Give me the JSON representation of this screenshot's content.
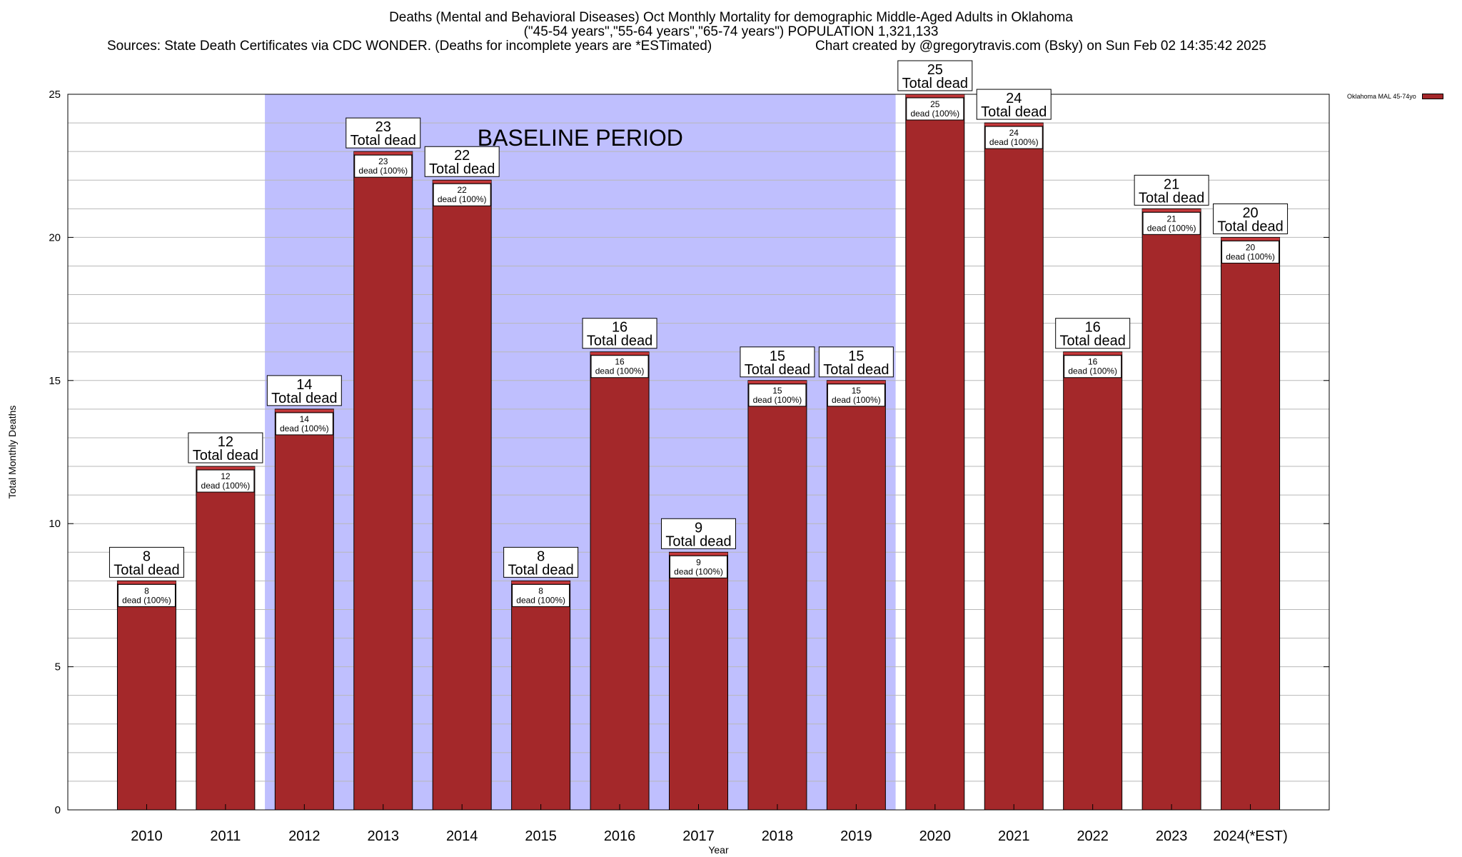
{
  "title": {
    "line1": "Deaths (Mental and Behavioral Diseases) Oct Monthly Mortality for demographic Middle-Aged Adults in Oklahoma",
    "line2": "(\"45-54 years\",\"55-64 years\",\"65-74 years\") POPULATION 1,321,133",
    "sources": "Sources: State Death Certificates via CDC WONDER. (Deaths for incomplete years are *ESTimated)",
    "credit": "Chart created by @gregorytravis.com (Bsky) on Sun Feb 02 14:35:42 2025"
  },
  "legend": {
    "label": "Oklahoma MAL 45-74yo",
    "color": "#a4282a"
  },
  "chart_data": {
    "type": "bar",
    "xlabel": "Year",
    "ylabel": "Total Monthly Deaths",
    "ylim": [
      0,
      25
    ],
    "yticks": [
      0,
      5,
      10,
      15,
      20,
      25
    ],
    "grid": true,
    "legend_position": "top-right",
    "categories": [
      "2010",
      "2011",
      "2012",
      "2013",
      "2014",
      "2015",
      "2016",
      "2017",
      "2018",
      "2019",
      "2020",
      "2021",
      "2022",
      "2023",
      "2024(*EST)"
    ],
    "series": [
      {
        "name": "Oklahoma MAL 45-74yo",
        "values": [
          8,
          12,
          14,
          23,
          22,
          8,
          16,
          9,
          15,
          15,
          25,
          24,
          16,
          21,
          20
        ]
      }
    ],
    "total_label": "Total dead",
    "inner_label_suffix": "dead (100%)",
    "baseline": {
      "label": "BASELINE PERIOD",
      "from": "2012",
      "to": "2019",
      "color": "#bfbffe"
    },
    "colors": {
      "bar": "#a4282a",
      "bar_top": "#c63a3c"
    }
  }
}
